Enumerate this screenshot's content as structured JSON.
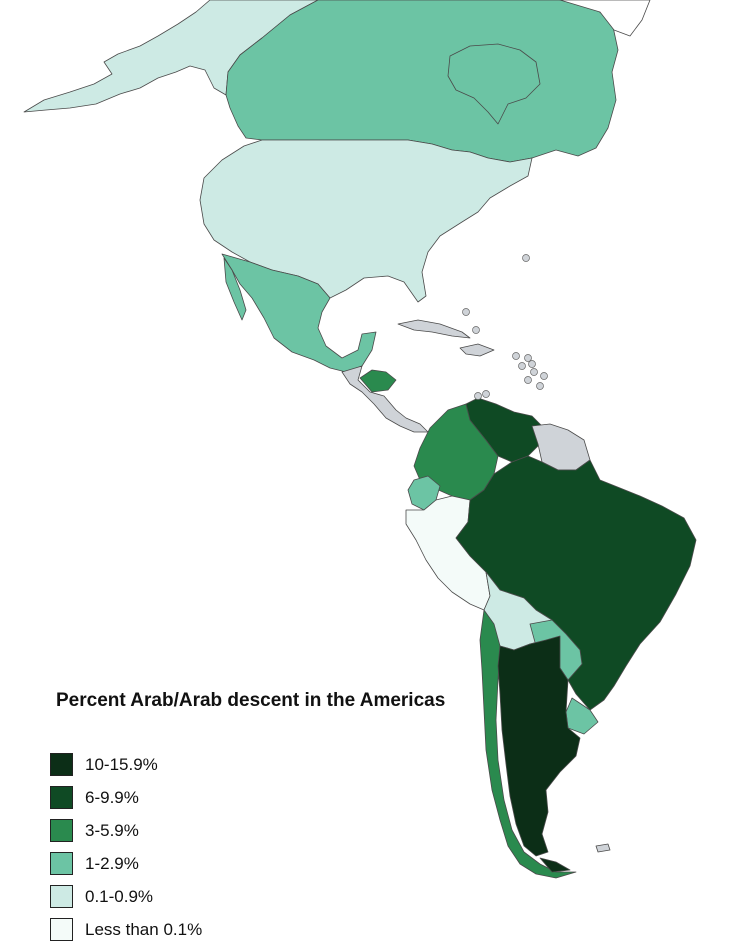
{
  "legend": {
    "title": "Percent Arab/Arab descent in the Americas",
    "items": [
      {
        "label": "10-15.9%",
        "color": "#0c2e17"
      },
      {
        "label": "6-9.9%",
        "color": "#0f4a24"
      },
      {
        "label": "3-5.9%",
        "color": "#2a8a4e"
      },
      {
        "label": "1-2.9%",
        "color": "#6cc4a4"
      },
      {
        "label": "0.1-0.9%",
        "color": "#cdeae4"
      },
      {
        "label": "Less than 0.1%",
        "color": "#f4fbf9"
      }
    ]
  },
  "no_data_color": "#cfd3d8",
  "regions": [
    {
      "name": "Alaska",
      "class": "0.1-0.9%"
    },
    {
      "name": "Canada",
      "class": "1-2.9%"
    },
    {
      "name": "United States",
      "class": "0.1-0.9%"
    },
    {
      "name": "Mexico",
      "class": "1-2.9%"
    },
    {
      "name": "Honduras",
      "class": "3-5.9%"
    },
    {
      "name": "Colombia",
      "class": "3-5.9%"
    },
    {
      "name": "Venezuela",
      "class": "6-9.9%"
    },
    {
      "name": "Ecuador",
      "class": "1-2.9%"
    },
    {
      "name": "Peru",
      "class": "Less than 0.1%"
    },
    {
      "name": "Brazil",
      "class": "6-9.9%"
    },
    {
      "name": "Bolivia",
      "class": "0.1-0.9%"
    },
    {
      "name": "Paraguay",
      "class": "1-2.9%"
    },
    {
      "name": "Uruguay",
      "class": "1-2.9%"
    },
    {
      "name": "Chile",
      "class": "3-5.9%"
    },
    {
      "name": "Argentina",
      "class": "10-15.9%"
    }
  ]
}
